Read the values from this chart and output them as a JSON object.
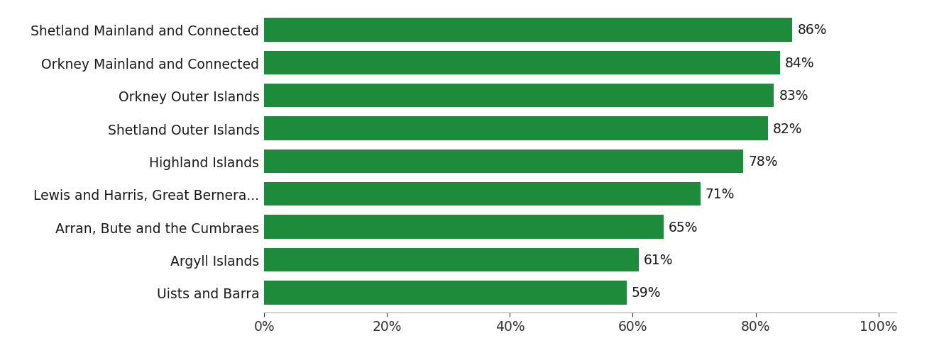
{
  "categories": [
    "Shetland Mainland and Connected",
    "Orkney Mainland and Connected",
    "Orkney Outer Islands",
    "Shetland Outer Islands",
    "Highland Islands",
    "Lewis and Harris, Great Bernera...",
    "Arran, Bute and the Cumbraes",
    "Argyll Islands",
    "Uists and Barra"
  ],
  "values": [
    86,
    84,
    83,
    82,
    78,
    71,
    65,
    61,
    59
  ],
  "bar_color": "#1e8a3c",
  "label_color": "#1a1a1a",
  "background_color": "#ffffff",
  "xlim": [
    0,
    100
  ],
  "xticks": [
    0,
    20,
    40,
    60,
    80,
    100
  ],
  "xtick_labels": [
    "0%",
    "20%",
    "40%",
    "60%",
    "80%",
    "100%"
  ],
  "bar_height": 0.72,
  "fontsize_labels": 13.5,
  "fontsize_ticks": 13.5,
  "fontsize_values": 13.5
}
